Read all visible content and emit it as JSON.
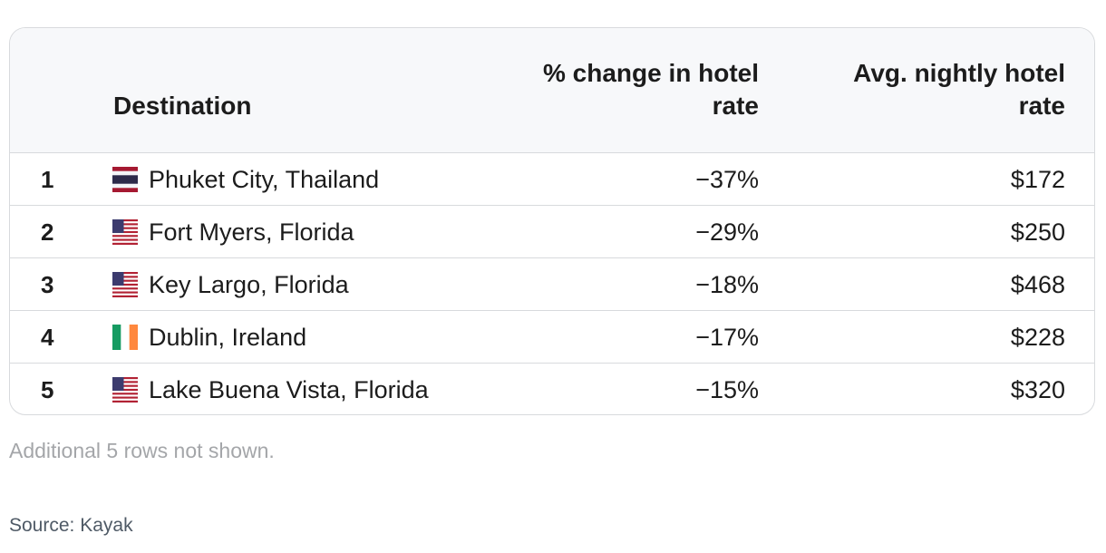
{
  "chart_data": {
    "type": "table",
    "columns": [
      "",
      "Destination",
      "% change in hotel rate",
      "Avg. nightly hotel rate"
    ],
    "header": {
      "destination": "Destination",
      "pct_change_line1": "% change in hotel",
      "pct_change_line2": "rate",
      "avg_rate_line1": "Avg. nightly hotel",
      "avg_rate_line2": "rate"
    },
    "rows": [
      {
        "rank": "1",
        "flag": "thailand-flag-icon",
        "destination": "Phuket City, Thailand",
        "pct_change": "−37%",
        "avg_rate": "$172"
      },
      {
        "rank": "2",
        "flag": "us-flag-icon",
        "destination": "Fort Myers, Florida",
        "pct_change": "−29%",
        "avg_rate": "$250"
      },
      {
        "rank": "3",
        "flag": "us-flag-icon",
        "destination": "Key Largo, Florida",
        "pct_change": "−18%",
        "avg_rate": "$468"
      },
      {
        "rank": "4",
        "flag": "ireland-flag-icon",
        "destination": "Dublin, Ireland",
        "pct_change": "−17%",
        "avg_rate": "$228"
      },
      {
        "rank": "5",
        "flag": "us-flag-icon",
        "destination": "Lake Buena Vista, Florida",
        "pct_change": "−15%",
        "avg_rate": "$320"
      }
    ]
  },
  "footnote": "Additional 5 rows not shown.",
  "source": "Source: Kayak",
  "colors": {
    "header_bg": "#f7f8fa",
    "border": "#d8dadd",
    "text": "#1c1c1c",
    "footnote": "#a4a6a9",
    "source": "#4f5a66"
  }
}
